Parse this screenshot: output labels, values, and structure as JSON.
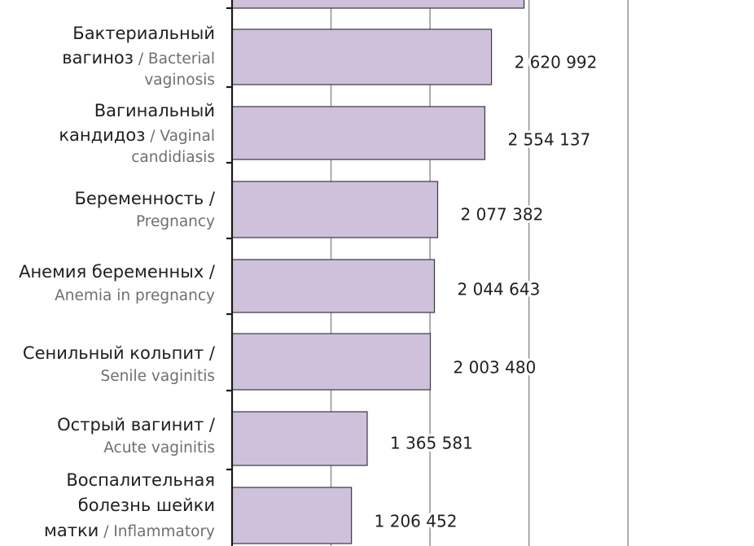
{
  "chart_data": {
    "type": "bar",
    "orientation": "horizontal",
    "categories": [
      {
        "ru": "",
        "en": ""
      },
      {
        "ru": "Бактериальный вагиноз",
        "en": "Bacterial vaginosis"
      },
      {
        "ru": "Вагинальный кандидоз",
        "en": "Vaginal candidiasis"
      },
      {
        "ru": "Беременность",
        "en": "Pregnancy"
      },
      {
        "ru": "Анемия беременных",
        "en": "Anemia in pregnancy"
      },
      {
        "ru": "Сенильный кольпит",
        "en": "Senile vaginitis"
      },
      {
        "ru": "Острый вагинит",
        "en": "Acute vaginitis"
      },
      {
        "ru": "Воспалительная болезнь шейки матки",
        "en": "Inflammatory"
      }
    ],
    "values": [
      2950000,
      2620992,
      2554137,
      2077382,
      2044643,
      2003480,
      1365581,
      1206452
    ],
    "value_labels": [
      "",
      "2 620 992",
      "2 554 137",
      "2 077 382",
      "2 044 643",
      "2 003 480",
      "1 365 581",
      "1 206 452"
    ],
    "xlim": [
      0,
      4000000
    ],
    "grid": true,
    "grid_lines_at": [
      1000000,
      2000000,
      3000000,
      4000000
    ],
    "bar_color": "#cfc0dc",
    "bar_edge_color": "#3a3a3a",
    "grid_color": "#8a8a8a",
    "axis_color": "#1a1a1a",
    "title": "",
    "xlabel": "",
    "ylabel": ""
  }
}
